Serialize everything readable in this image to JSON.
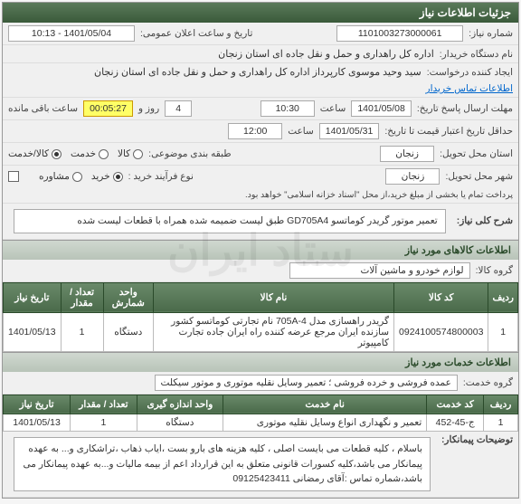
{
  "panel_title": "جزئیات اطلاعات نیاز",
  "labels": {
    "need_no": "شماره نیاز:",
    "announce": "تاریخ و ساعت اعلان عمومی:",
    "buyer_org": "نام دستگاه خریدار:",
    "requester": "ایجاد کننده درخواست:",
    "contact": "اطلاعات تماس خریدار",
    "send_deadline": "مهلت ارسال پاسخ تاریخ:",
    "time": "ساعت",
    "day_and": "روز و",
    "time_left": "ساعت باقی مانده",
    "validity_min": "حداقل تاریخ اعتبار قیمت تا تاریخ:",
    "delivery_prov": "استان محل تحویل:",
    "delivery_city": "شهر محل تحویل:",
    "budget_cat": "طبقه بندی موضوعی:",
    "purchase_type": "نوع فرآیند خرید :",
    "payment_note": "پرداخت تمام یا بخشی از مبلغ خرید،از محل \"اسناد خزانه اسلامی\" خواهد بود.",
    "need_desc": "شرح کلی نیاز:",
    "goods_section": "اطلاعات کالاهای مورد نیاز",
    "goods_group": "گروه کالا:",
    "services_section": "اطلاعات خدمات مورد نیاز",
    "service_group": "گروه خدمت:",
    "notes": "توضیحات پیمانکار:",
    "good": "کالا",
    "service": "خدمت",
    "both": "کالا/خدمت",
    "buying": "خرید",
    "consult": "مشاوره"
  },
  "values": {
    "need_no": "1101003273000061",
    "announce": "1401/05/04 - 10:13",
    "buyer_org": "اداره کل راهداری و حمل و نقل جاده ای استان زنجان",
    "requester": "سید وحید موسوی کارپرداز اداره کل راهداری و حمل و نقل جاده ای استان زنجان",
    "deadline_date": "1401/05/08",
    "deadline_time": "10:30",
    "days_left": "4",
    "countdown": "00:05:27",
    "validity_date": "1401/05/31",
    "validity_time": "12:00",
    "province": "زنجان",
    "city": "زنجان",
    "need_desc": "تعمیر موتور گریدر کوماتسو GD705A4 طبق لیست ضمیمه شده همراه با قطعات لیست شده",
    "goods_group": "لوازم خودرو و ماشین آلات",
    "service_group": "عمده فروشی و خرده فروشی ؛ تعمیر وسایل نقلیه موتوری و موتور سیکلت",
    "contractor_notes": "باسلام ، کلیه قطعات می بایست اصلی ، کلیه هزینه های بارو بست ،ایاب ذهاب ،تراشکاری و... به عهده پیمانکار می باشد،کلیه کسورات قانونی متعلق به این قرارداد اعم از بیمه مالیات و...به عهده پیمانکار می باشد،شماره تماس :آقای رمضانی 09125423411"
  },
  "goods_table": {
    "headers": [
      "ردیف",
      "کد کالا",
      "نام کالا",
      "واحد شمارش",
      "تعداد / مقدار",
      "تاریخ نیاز"
    ],
    "rows": [
      [
        "1",
        "0924100574800003",
        "گریدر راهسازی مدل 4-705A نام تجارتی کوماتسو کشور سازنده ایران مرجع عرضه کننده راه ایران جاده تجارت کامپیوتر",
        "دستگاه",
        "1",
        "1401/05/13"
      ]
    ]
  },
  "services_table": {
    "headers": [
      "ردیف",
      "کد خدمت",
      "نام خدمت",
      "واحد اندازه گیری",
      "تعداد / مقدار",
      "تاریخ نیاز"
    ],
    "rows": [
      [
        "1",
        "ج-45-452",
        "تعمیر و نگهداری انواع وسایل نقلیه موتوری",
        "دستگاه",
        "1",
        "1401/05/13"
      ]
    ]
  }
}
